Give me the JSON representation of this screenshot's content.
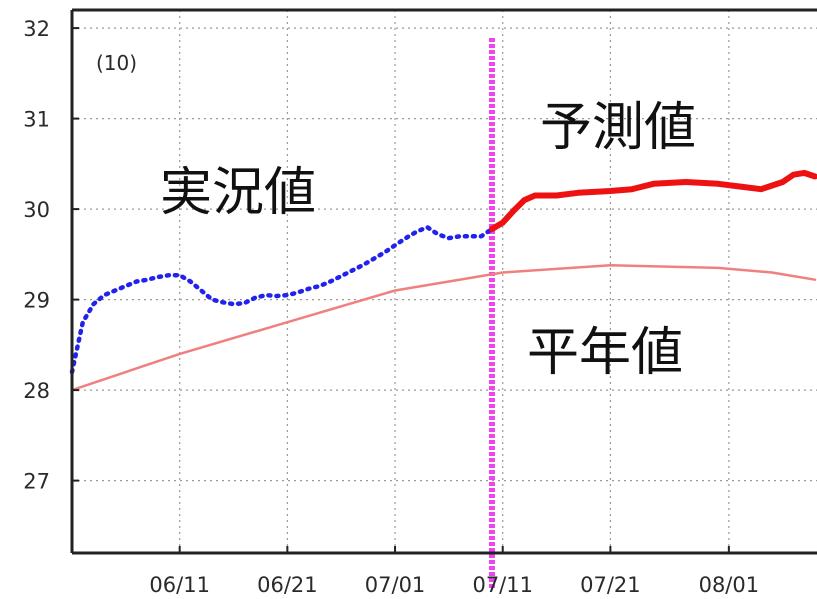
{
  "chart_data": {
    "type": "line",
    "panel_label": "(10)",
    "x_ticks": [
      "06/11",
      "06/21",
      "07/01",
      "07/11",
      "07/21",
      "08/01"
    ],
    "y_ticks": [
      27,
      28,
      29,
      30,
      31,
      32
    ],
    "ylim": [
      26.2,
      32.2
    ],
    "grid": true,
    "forecast_start": "07/10",
    "annotations": {
      "observed": "実況値",
      "forecast": "予測値",
      "normal": "平年値"
    },
    "series": [
      {
        "key": "observed",
        "color": "#2222ee",
        "style": "dotted",
        "points": [
          [
            "06/01",
            28.2
          ],
          [
            "06/02",
            28.75
          ],
          [
            "06/03",
            28.95
          ],
          [
            "06/04",
            29.05
          ],
          [
            "06/05",
            29.1
          ],
          [
            "06/06",
            29.15
          ],
          [
            "06/07",
            29.2
          ],
          [
            "06/08",
            29.22
          ],
          [
            "06/09",
            29.25
          ],
          [
            "06/10",
            29.27
          ],
          [
            "06/11",
            29.27
          ],
          [
            "06/12",
            29.2
          ],
          [
            "06/13",
            29.1
          ],
          [
            "06/14",
            29.0
          ],
          [
            "06/15",
            28.97
          ],
          [
            "06/16",
            28.95
          ],
          [
            "06/17",
            28.96
          ],
          [
            "06/18",
            29.02
          ],
          [
            "06/19",
            29.05
          ],
          [
            "06/20",
            29.04
          ],
          [
            "06/21",
            29.05
          ],
          [
            "06/22",
            29.08
          ],
          [
            "06/23",
            29.12
          ],
          [
            "06/24",
            29.15
          ],
          [
            "06/25",
            29.2
          ],
          [
            "06/26",
            29.26
          ],
          [
            "06/27",
            29.32
          ],
          [
            "06/28",
            29.38
          ],
          [
            "06/29",
            29.45
          ],
          [
            "06/30",
            29.52
          ],
          [
            "07/01",
            29.6
          ],
          [
            "07/02",
            29.68
          ],
          [
            "07/03",
            29.75
          ],
          [
            "07/04",
            29.8
          ],
          [
            "07/05",
            29.72
          ],
          [
            "07/06",
            29.68
          ],
          [
            "07/07",
            29.7
          ],
          [
            "07/08",
            29.7
          ],
          [
            "07/09",
            29.7
          ],
          [
            "07/10",
            29.78
          ]
        ]
      },
      {
        "key": "forecast",
        "color": "#ee1111",
        "style": "solid",
        "points": [
          [
            "07/10",
            29.78
          ],
          [
            "07/11",
            29.85
          ],
          [
            "07/12",
            29.98
          ],
          [
            "07/13",
            30.1
          ],
          [
            "07/14",
            30.15
          ],
          [
            "07/16",
            30.15
          ],
          [
            "07/18",
            30.18
          ],
          [
            "07/21",
            30.2
          ],
          [
            "07/23",
            30.22
          ],
          [
            "07/25",
            30.28
          ],
          [
            "07/28",
            30.3
          ],
          [
            "07/31",
            30.28
          ],
          [
            "08/02",
            30.25
          ],
          [
            "08/04",
            30.22
          ],
          [
            "08/06",
            30.3
          ],
          [
            "08/07",
            30.38
          ],
          [
            "08/08",
            30.4
          ],
          [
            "08/09",
            30.36
          ]
        ]
      },
      {
        "key": "normal",
        "color": "#f08080",
        "style": "solid-thin",
        "points": [
          [
            "06/01",
            28.0
          ],
          [
            "06/11",
            28.4
          ],
          [
            "06/21",
            28.75
          ],
          [
            "07/01",
            29.1
          ],
          [
            "07/11",
            29.3
          ],
          [
            "07/21",
            29.38
          ],
          [
            "07/31",
            29.35
          ],
          [
            "08/05",
            29.3
          ],
          [
            "08/09",
            29.22
          ]
        ]
      }
    ]
  }
}
